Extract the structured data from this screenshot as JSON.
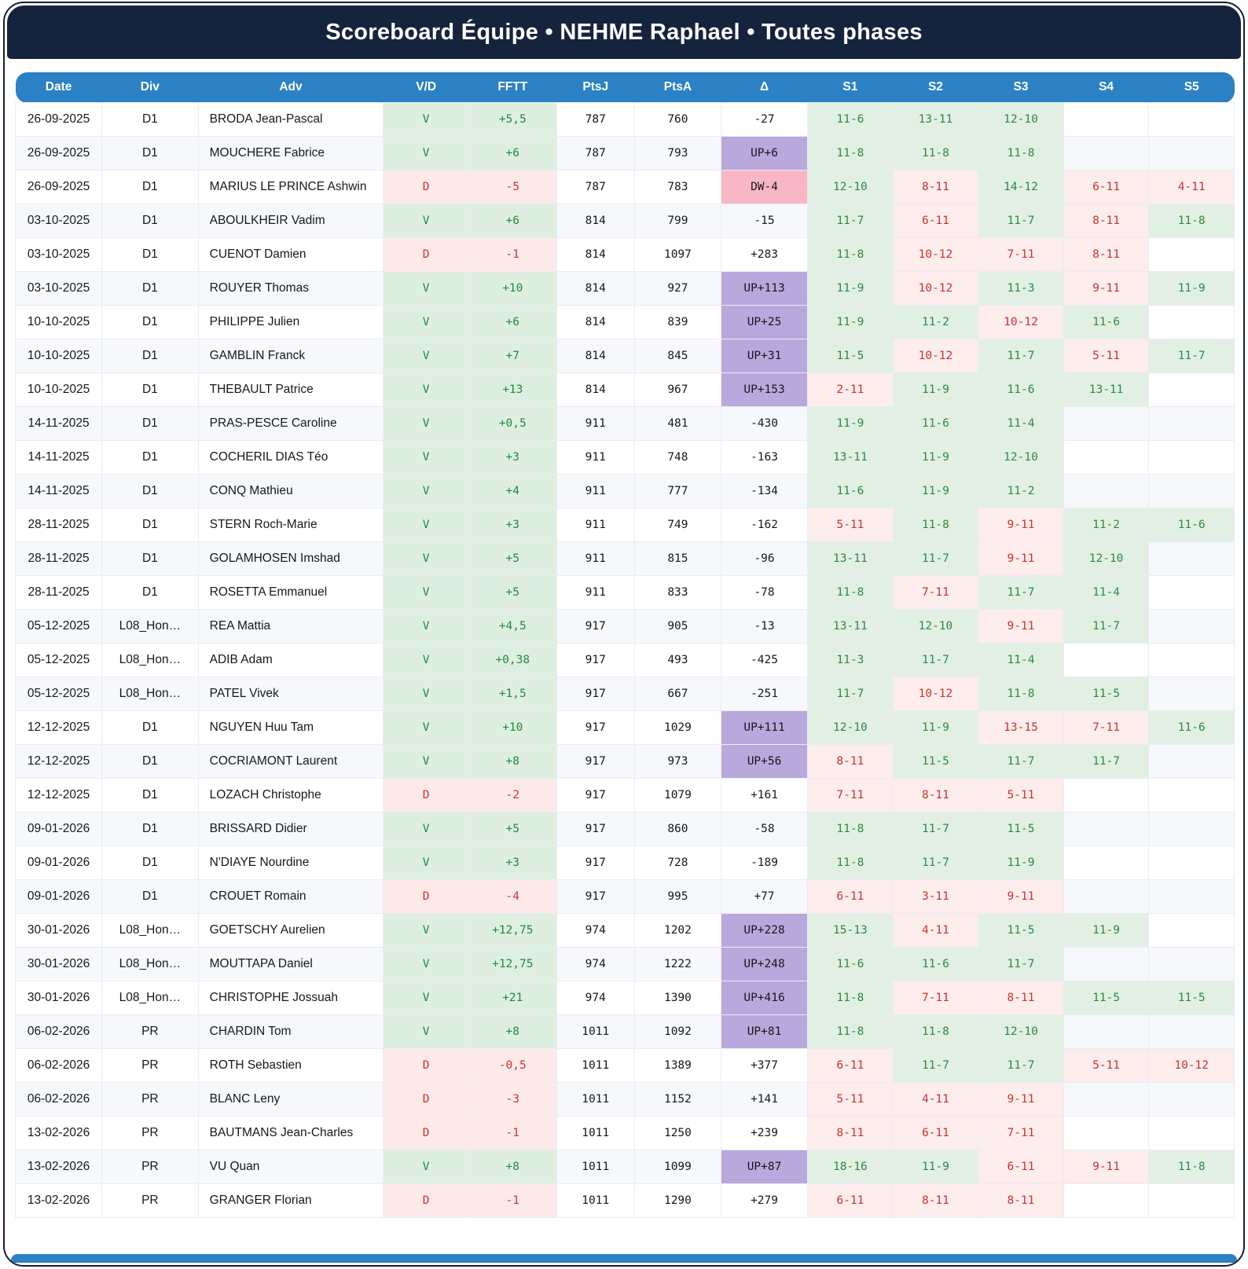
{
  "title": "Scoreboard Équipe • NEHME Raphael • Toutes phases",
  "colors": {
    "navy_title_bar": "#16233d",
    "blue_header_bar": "#2b81c4",
    "win_cell_bg": "#deefe0",
    "win_text": "#1f8b3c",
    "loss_cell_bg": "#fdeae8",
    "loss_text": "#cc3232",
    "delta_up_bg": "#b9a8dc",
    "delta_down_bg": "#f9b7c6",
    "row_stripe_bg": "#f6f8fc"
  },
  "table": {
    "columns": [
      "Date",
      "Div",
      "Adv",
      "V/D",
      "FFTT",
      "PtsJ",
      "PtsA",
      "Δ",
      "S1",
      "S2",
      "S3",
      "S4",
      "S5"
    ],
    "rows": [
      {
        "date": "26-09-2025",
        "div": "D1",
        "adv": "BRODA Jean-Pascal",
        "vd": "V",
        "fftt": "+5,5",
        "ptsj": "787",
        "ptsa": "760",
        "delta": "-27",
        "sets": [
          "11-6",
          "13-11",
          "12-10",
          "",
          ""
        ]
      },
      {
        "date": "26-09-2025",
        "div": "D1",
        "adv": "MOUCHERE Fabrice",
        "vd": "V",
        "fftt": "+6",
        "ptsj": "787",
        "ptsa": "793",
        "delta": "UP+6",
        "sets": [
          "11-8",
          "11-8",
          "11-8",
          "",
          ""
        ]
      },
      {
        "date": "26-09-2025",
        "div": "D1",
        "adv": "MARIUS LE PRINCE Ashwin",
        "vd": "D",
        "fftt": "-5",
        "ptsj": "787",
        "ptsa": "783",
        "delta": "DW-4",
        "sets": [
          "12-10",
          "8-11",
          "14-12",
          "6-11",
          "4-11"
        ]
      },
      {
        "date": "03-10-2025",
        "div": "D1",
        "adv": "ABOULKHEIR Vadim",
        "vd": "V",
        "fftt": "+6",
        "ptsj": "814",
        "ptsa": "799",
        "delta": "-15",
        "sets": [
          "11-7",
          "6-11",
          "11-7",
          "8-11",
          "11-8"
        ]
      },
      {
        "date": "03-10-2025",
        "div": "D1",
        "adv": "CUENOT Damien",
        "vd": "D",
        "fftt": "-1",
        "ptsj": "814",
        "ptsa": "1097",
        "delta": "+283",
        "sets": [
          "11-8",
          "10-12",
          "7-11",
          "8-11",
          ""
        ]
      },
      {
        "date": "03-10-2025",
        "div": "D1",
        "adv": "ROUYER Thomas",
        "vd": "V",
        "fftt": "+10",
        "ptsj": "814",
        "ptsa": "927",
        "delta": "UP+113",
        "sets": [
          "11-9",
          "10-12",
          "11-3",
          "9-11",
          "11-9"
        ]
      },
      {
        "date": "10-10-2025",
        "div": "D1",
        "adv": "PHILIPPE Julien",
        "vd": "V",
        "fftt": "+6",
        "ptsj": "814",
        "ptsa": "839",
        "delta": "UP+25",
        "sets": [
          "11-9",
          "11-2",
          "10-12",
          "11-6",
          ""
        ]
      },
      {
        "date": "10-10-2025",
        "div": "D1",
        "adv": "GAMBLIN Franck",
        "vd": "V",
        "fftt": "+7",
        "ptsj": "814",
        "ptsa": "845",
        "delta": "UP+31",
        "sets": [
          "11-5",
          "10-12",
          "11-7",
          "5-11",
          "11-7"
        ]
      },
      {
        "date": "10-10-2025",
        "div": "D1",
        "adv": "THEBAULT Patrice",
        "vd": "V",
        "fftt": "+13",
        "ptsj": "814",
        "ptsa": "967",
        "delta": "UP+153",
        "sets": [
          "2-11",
          "11-9",
          "11-6",
          "13-11",
          ""
        ]
      },
      {
        "date": "14-11-2025",
        "div": "D1",
        "adv": "PRAS-PESCE Caroline",
        "vd": "V",
        "fftt": "+0,5",
        "ptsj": "911",
        "ptsa": "481",
        "delta": "-430",
        "sets": [
          "11-9",
          "11-6",
          "11-4",
          "",
          ""
        ]
      },
      {
        "date": "14-11-2025",
        "div": "D1",
        "adv": "COCHERIL DIAS Téo",
        "vd": "V",
        "fftt": "+3",
        "ptsj": "911",
        "ptsa": "748",
        "delta": "-163",
        "sets": [
          "13-11",
          "11-9",
          "12-10",
          "",
          ""
        ]
      },
      {
        "date": "14-11-2025",
        "div": "D1",
        "adv": "CONQ Mathieu",
        "vd": "V",
        "fftt": "+4",
        "ptsj": "911",
        "ptsa": "777",
        "delta": "-134",
        "sets": [
          "11-6",
          "11-9",
          "11-2",
          "",
          ""
        ]
      },
      {
        "date": "28-11-2025",
        "div": "D1",
        "adv": "STERN Roch-Marie",
        "vd": "V",
        "fftt": "+3",
        "ptsj": "911",
        "ptsa": "749",
        "delta": "-162",
        "sets": [
          "5-11",
          "11-8",
          "9-11",
          "11-2",
          "11-6"
        ]
      },
      {
        "date": "28-11-2025",
        "div": "D1",
        "adv": "GOLAMHOSEN Imshad",
        "vd": "V",
        "fftt": "+5",
        "ptsj": "911",
        "ptsa": "815",
        "delta": "-96",
        "sets": [
          "13-11",
          "11-7",
          "9-11",
          "12-10",
          ""
        ]
      },
      {
        "date": "28-11-2025",
        "div": "D1",
        "adv": "ROSETTA Emmanuel",
        "vd": "V",
        "fftt": "+5",
        "ptsj": "911",
        "ptsa": "833",
        "delta": "-78",
        "sets": [
          "11-8",
          "7-11",
          "11-7",
          "11-4",
          ""
        ]
      },
      {
        "date": "05-12-2025",
        "div": "L08_Hon…",
        "adv": "REA Mattia",
        "vd": "V",
        "fftt": "+4,5",
        "ptsj": "917",
        "ptsa": "905",
        "delta": "-13",
        "sets": [
          "13-11",
          "12-10",
          "9-11",
          "11-7",
          ""
        ]
      },
      {
        "date": "05-12-2025",
        "div": "L08_Hon…",
        "adv": "ADIB Adam",
        "vd": "V",
        "fftt": "+0,38",
        "ptsj": "917",
        "ptsa": "493",
        "delta": "-425",
        "sets": [
          "11-3",
          "11-7",
          "11-4",
          "",
          ""
        ]
      },
      {
        "date": "05-12-2025",
        "div": "L08_Hon…",
        "adv": "PATEL Vivek",
        "vd": "V",
        "fftt": "+1,5",
        "ptsj": "917",
        "ptsa": "667",
        "delta": "-251",
        "sets": [
          "11-7",
          "10-12",
          "11-8",
          "11-5",
          ""
        ]
      },
      {
        "date": "12-12-2025",
        "div": "D1",
        "adv": "NGUYEN Huu Tam",
        "vd": "V",
        "fftt": "+10",
        "ptsj": "917",
        "ptsa": "1029",
        "delta": "UP+111",
        "sets": [
          "12-10",
          "11-9",
          "13-15",
          "7-11",
          "11-6"
        ]
      },
      {
        "date": "12-12-2025",
        "div": "D1",
        "adv": "COCRIAMONT Laurent",
        "vd": "V",
        "fftt": "+8",
        "ptsj": "917",
        "ptsa": "973",
        "delta": "UP+56",
        "sets": [
          "8-11",
          "11-5",
          "11-7",
          "11-7",
          ""
        ]
      },
      {
        "date": "12-12-2025",
        "div": "D1",
        "adv": "LOZACH Christophe",
        "vd": "D",
        "fftt": "-2",
        "ptsj": "917",
        "ptsa": "1079",
        "delta": "+161",
        "sets": [
          "7-11",
          "8-11",
          "5-11",
          "",
          ""
        ]
      },
      {
        "date": "09-01-2026",
        "div": "D1",
        "adv": "BRISSARD Didier",
        "vd": "V",
        "fftt": "+5",
        "ptsj": "917",
        "ptsa": "860",
        "delta": "-58",
        "sets": [
          "11-8",
          "11-7",
          "11-5",
          "",
          ""
        ]
      },
      {
        "date": "09-01-2026",
        "div": "D1",
        "adv": "N'DIAYE Nourdine",
        "vd": "V",
        "fftt": "+3",
        "ptsj": "917",
        "ptsa": "728",
        "delta": "-189",
        "sets": [
          "11-8",
          "11-7",
          "11-9",
          "",
          ""
        ]
      },
      {
        "date": "09-01-2026",
        "div": "D1",
        "adv": "CROUET Romain",
        "vd": "D",
        "fftt": "-4",
        "ptsj": "917",
        "ptsa": "995",
        "delta": "+77",
        "sets": [
          "6-11",
          "3-11",
          "9-11",
          "",
          ""
        ]
      },
      {
        "date": "30-01-2026",
        "div": "L08_Hon…",
        "adv": "GOETSCHY Aurelien",
        "vd": "V",
        "fftt": "+12,75",
        "ptsj": "974",
        "ptsa": "1202",
        "delta": "UP+228",
        "sets": [
          "15-13",
          "4-11",
          "11-5",
          "11-9",
          ""
        ]
      },
      {
        "date": "30-01-2026",
        "div": "L08_Hon…",
        "adv": "MOUTTAPA Daniel",
        "vd": "V",
        "fftt": "+12,75",
        "ptsj": "974",
        "ptsa": "1222",
        "delta": "UP+248",
        "sets": [
          "11-6",
          "11-6",
          "11-7",
          "",
          ""
        ]
      },
      {
        "date": "30-01-2026",
        "div": "L08_Hon…",
        "adv": "CHRISTOPHE Jossuah",
        "vd": "V",
        "fftt": "+21",
        "ptsj": "974",
        "ptsa": "1390",
        "delta": "UP+416",
        "sets": [
          "11-8",
          "7-11",
          "8-11",
          "11-5",
          "11-5"
        ]
      },
      {
        "date": "06-02-2026",
        "div": "PR",
        "adv": "CHARDIN Tom",
        "vd": "V",
        "fftt": "+8",
        "ptsj": "1011",
        "ptsa": "1092",
        "delta": "UP+81",
        "sets": [
          "11-8",
          "11-8",
          "12-10",
          "",
          ""
        ]
      },
      {
        "date": "06-02-2026",
        "div": "PR",
        "adv": "ROTH Sebastien",
        "vd": "D",
        "fftt": "-0,5",
        "ptsj": "1011",
        "ptsa": "1389",
        "delta": "+377",
        "sets": [
          "6-11",
          "11-7",
          "11-7",
          "5-11",
          "10-12"
        ]
      },
      {
        "date": "06-02-2026",
        "div": "PR",
        "adv": "BLANC Leny",
        "vd": "D",
        "fftt": "-3",
        "ptsj": "1011",
        "ptsa": "1152",
        "delta": "+141",
        "sets": [
          "5-11",
          "4-11",
          "9-11",
          "",
          ""
        ]
      },
      {
        "date": "13-02-2026",
        "div": "PR",
        "adv": "BAUTMANS Jean-Charles",
        "vd": "D",
        "fftt": "-1",
        "ptsj": "1011",
        "ptsa": "1250",
        "delta": "+239",
        "sets": [
          "8-11",
          "6-11",
          "7-11",
          "",
          ""
        ]
      },
      {
        "date": "13-02-2026",
        "div": "PR",
        "adv": "VU Quan",
        "vd": "V",
        "fftt": "+8",
        "ptsj": "1011",
        "ptsa": "1099",
        "delta": "UP+87",
        "sets": [
          "18-16",
          "11-9",
          "6-11",
          "9-11",
          "11-8"
        ]
      },
      {
        "date": "13-02-2026",
        "div": "PR",
        "adv": "GRANGER Florian",
        "vd": "D",
        "fftt": "-1",
        "ptsj": "1011",
        "ptsa": "1290",
        "delta": "+279",
        "sets": [
          "6-11",
          "8-11",
          "8-11",
          "",
          ""
        ]
      }
    ]
  }
}
